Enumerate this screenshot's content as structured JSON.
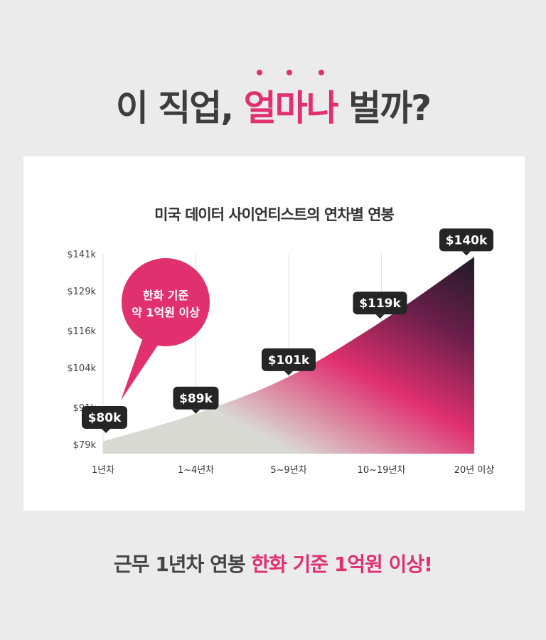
{
  "headline": {
    "prefix": "이 직업, ",
    "highlight": "얼마나",
    "suffix": " 벌까?"
  },
  "colors": {
    "accent": "#e0306e",
    "dark": "#1e1b26",
    "area_start": "#d9d9d4",
    "text": "#3d3d3d"
  },
  "chart_data": {
    "type": "area",
    "title": "미국 데이터 사이언티스트의 연차별 연봉",
    "categories": [
      "1년차",
      "1~4년차",
      "5~9년차",
      "10~19년차",
      "20년 이상"
    ],
    "series": [
      {
        "values": [
          80,
          89,
          101,
          119,
          140
        ],
        "labels": [
          "$80k",
          "$89k",
          "$101k",
          "$119k",
          "$140k"
        ]
      }
    ],
    "yticks": [
      79,
      91,
      104,
      116,
      129,
      141
    ],
    "ytick_labels": [
      "$79k",
      "$91k",
      "$104k",
      "$116k",
      "$129k",
      "$141k"
    ],
    "ylim": [
      76,
      141
    ],
    "grid": "vertical",
    "annotation": {
      "lines": [
        "한화 기준",
        "약 1억원 이상"
      ]
    }
  },
  "footer": {
    "prefix": "근무 1년차 연봉 ",
    "highlight": "한화 기준 1억원 이상",
    "suffix": "!"
  }
}
